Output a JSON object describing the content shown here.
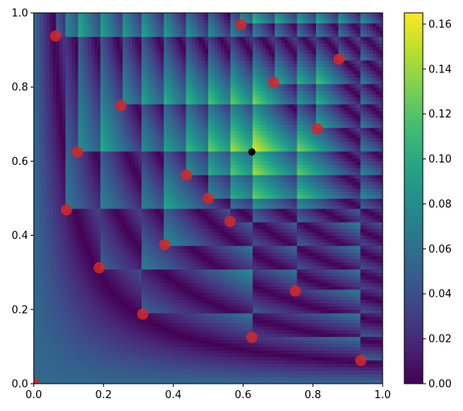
{
  "chart_data": {
    "type": "heatmap",
    "title": "",
    "xlabel": "",
    "ylabel": "",
    "xlim": [
      0,
      1
    ],
    "ylim": [
      0,
      1
    ],
    "x_ticks": [
      "0.0",
      "0.2",
      "0.4",
      "0.6",
      "0.8",
      "1.0"
    ],
    "y_ticks": [
      "0.0",
      "0.2",
      "0.4",
      "0.6",
      "0.8",
      "1.0"
    ],
    "colormap": "viridis",
    "colorbar": {
      "range": [
        0,
        0.165
      ],
      "ticks": [
        "0.00",
        "0.02",
        "0.04",
        "0.06",
        "0.08",
        "0.10",
        "0.12",
        "0.14",
        "0.16"
      ]
    },
    "grid": false,
    "legend": "none",
    "sample_points": {
      "color": "#d62728",
      "points": [
        [
          0.0,
          0.0
        ],
        [
          0.0625,
          0.9375
        ],
        [
          0.09375,
          0.46875
        ],
        [
          0.125,
          0.625
        ],
        [
          0.1875,
          0.3125
        ],
        [
          0.25,
          0.75
        ],
        [
          0.3125,
          0.1875
        ],
        [
          0.375,
          0.375
        ],
        [
          0.4375,
          0.5625
        ],
        [
          0.5,
          0.5
        ],
        [
          0.5625,
          0.4375
        ],
        [
          0.59375,
          0.96875
        ],
        [
          0.625,
          0.125
        ],
        [
          0.6875,
          0.8125
        ],
        [
          0.75,
          0.25
        ],
        [
          0.8125,
          0.6875
        ],
        [
          0.875,
          0.875
        ],
        [
          0.9375,
          0.0625
        ]
      ]
    },
    "highlight_point": {
      "color": "#000000",
      "x": 0.625,
      "y": 0.625
    }
  }
}
